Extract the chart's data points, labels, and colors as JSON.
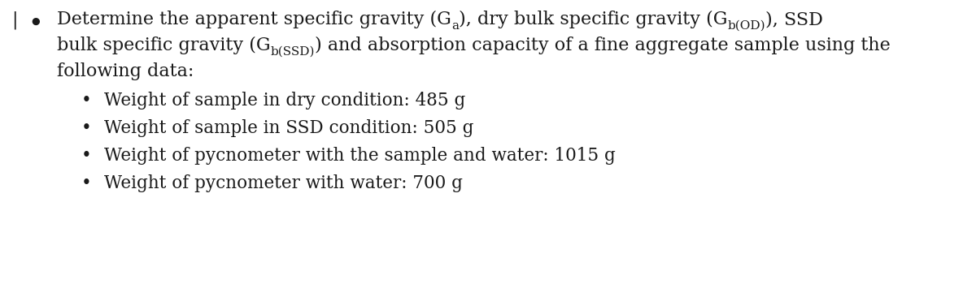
{
  "background_color": "#ffffff",
  "figsize": [
    12.0,
    3.55
  ],
  "dpi": 100,
  "heading_line3": "following data:",
  "bullet1": "Weight of sample in dry condition: 485 g",
  "bullet2": "Weight of sample in SSD condition: 505 g",
  "bullet3": "Weight of pycnometer with the sample and water: 1015 g",
  "bullet4": "Weight of pycnometer with water: 700 g",
  "font_size_main": 16.0,
  "font_size_sub": 11.0,
  "font_size_bullet": 15.5,
  "text_color": "#1a1a1a",
  "font_family": "DejaVu Serif"
}
